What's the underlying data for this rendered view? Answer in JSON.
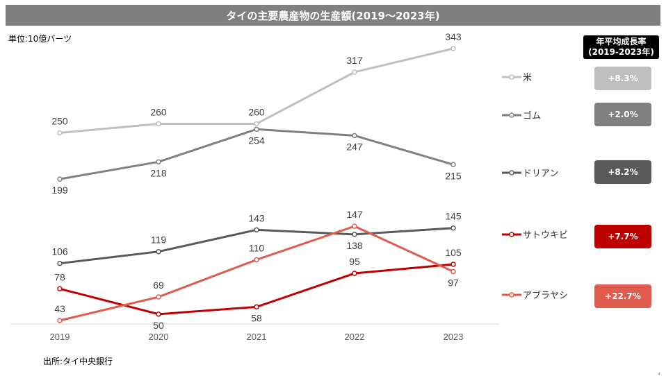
{
  "title": "タイの主要農産物の生産額(2019〜2023年)",
  "unit_label": "単位:10億バーツ",
  "source_label": "出所:タイ中央銀行",
  "cagr_header": {
    "line1": "年平均成長率",
    "line2": "(2019-2023年)"
  },
  "corner_mark": "⌟",
  "colors": {
    "rice": "#bfbfbf",
    "rubber": "#808080",
    "durian": "#595959",
    "sugarcane": "#c00000",
    "oilpalm": "#e05a4e"
  },
  "chart_data": {
    "type": "line",
    "x": [
      "2019",
      "2020",
      "2021",
      "2022",
      "2023"
    ],
    "ylim": [
      40,
      350
    ],
    "grid": false,
    "legend_position": "right",
    "series": [
      {
        "key": "rice",
        "name": "米",
        "values": [
          250,
          260,
          260,
          317,
          343
        ],
        "cagr": "+8.3%",
        "label_pos": [
          "above",
          "above",
          "above",
          "above",
          "above"
        ]
      },
      {
        "key": "rubber",
        "name": "ゴム",
        "values": [
          199,
          218,
          254,
          247,
          215
        ],
        "cagr": "+2.0%",
        "label_pos": [
          "below",
          "below",
          "below",
          "below",
          "below"
        ]
      },
      {
        "key": "durian",
        "name": "ドリアン",
        "values": [
          106,
          119,
          143,
          138,
          145
        ],
        "cagr": "+8.2%",
        "label_pos": [
          "above",
          "above",
          "above",
          "below",
          "above"
        ]
      },
      {
        "key": "sugarcane",
        "name": "サトウキビ",
        "values": [
          78,
          50,
          58,
          95,
          105
        ],
        "cagr": "+7.7%",
        "label_pos": [
          "above",
          "below",
          "below",
          "above",
          "above"
        ]
      },
      {
        "key": "oilpalm",
        "name": "アブラヤシ",
        "values": [
          43,
          69,
          110,
          147,
          97
        ],
        "cagr": "+22.7%",
        "label_pos": [
          "above",
          "above",
          "above",
          "above",
          "below"
        ]
      }
    ]
  }
}
